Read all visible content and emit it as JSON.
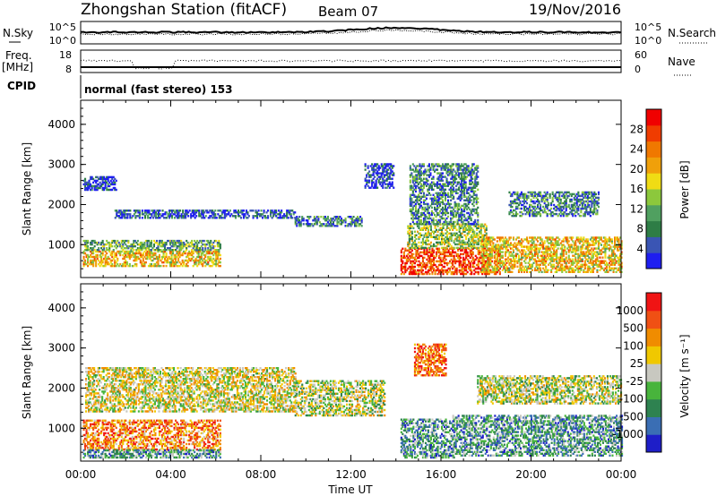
{
  "header": {
    "title": "Zhongshan Station (fitACF)",
    "beam": "Beam 07",
    "date": "19/Nov/2016"
  },
  "summary": {
    "nsky_label": "N.Sky",
    "nsky_ticks": [
      "10^5",
      "10^0"
    ],
    "nsearch_label": "N.Search",
    "nsearch_ticks": [
      "10^5",
      "10^0"
    ],
    "freq_label": "Freq.",
    "freq_unit": "[MHz]",
    "freq_ticks": [
      "18",
      "8"
    ],
    "nave_label": "Nave",
    "nave_ticks": [
      "60",
      "0"
    ],
    "cpid_label": "CPID",
    "cpid_text": "normal (fast stereo) 153"
  },
  "chart_data": [
    {
      "type": "heatmap",
      "name": "power",
      "ylabel": "Slant Range [km]",
      "xlabel": "",
      "x_ticks": [
        "00:00",
        "04:00",
        "08:00",
        "12:00",
        "16:00",
        "20:00",
        "00:00"
      ],
      "x_range_hours": [
        0,
        24
      ],
      "y_ticks": [
        1000,
        2000,
        3000,
        4000
      ],
      "ylim": [
        180,
        4600
      ],
      "colorbar": {
        "label": "Power [dB]",
        "ticks": [
          "4",
          "8",
          "12",
          "16",
          "20",
          "24",
          "28"
        ],
        "colors": [
          "#1e1ef0",
          "#3a55b4",
          "#2e7d46",
          "#50a060",
          "#8cc83c",
          "#f0dc14",
          "#f0a00a",
          "#f07800",
          "#f03c00",
          "#f00000"
        ]
      },
      "bands": [
        {
          "t0": 0.1,
          "t1": 6.2,
          "r0": 450,
          "r1": 850,
          "level": 0.6
        },
        {
          "t0": 0.1,
          "t1": 6.2,
          "r0": 850,
          "r1": 1100,
          "level": 0.35
        },
        {
          "t0": 1.5,
          "t1": 9.5,
          "r0": 1650,
          "r1": 1850,
          "level": 0.15
        },
        {
          "t0": 0.1,
          "t1": 1.6,
          "r0": 2350,
          "r1": 2700,
          "level": 0.1
        },
        {
          "t0": 9.5,
          "t1": 12.5,
          "r0": 1450,
          "r1": 1700,
          "level": 0.25
        },
        {
          "t0": 12.6,
          "t1": 13.9,
          "r0": 2400,
          "r1": 3000,
          "level": 0.1
        },
        {
          "t0": 14.2,
          "t1": 18.6,
          "r0": 250,
          "r1": 900,
          "level": 0.85
        },
        {
          "t0": 14.5,
          "t1": 18.0,
          "r0": 900,
          "r1": 1500,
          "level": 0.45
        },
        {
          "t0": 14.6,
          "t1": 17.6,
          "r0": 1500,
          "r1": 3000,
          "level": 0.25
        },
        {
          "t0": 17.8,
          "t1": 24.0,
          "r0": 300,
          "r1": 1200,
          "level": 0.6
        },
        {
          "t0": 19.0,
          "t1": 23.0,
          "r0": 1700,
          "r1": 2300,
          "level": 0.25
        }
      ]
    },
    {
      "type": "heatmap",
      "name": "velocity",
      "ylabel": "Slant Range [km]",
      "xlabel": "Time UT",
      "x_ticks": [
        "00:00",
        "04:00",
        "08:00",
        "12:00",
        "16:00",
        "20:00",
        "00:00"
      ],
      "x_range_hours": [
        0,
        24
      ],
      "y_ticks": [
        1000,
        2000,
        3000,
        4000
      ],
      "ylim": [
        180,
        4600
      ],
      "colorbar": {
        "label": "Velocity [m s⁻¹]",
        "ticks": [
          "1000",
          "500",
          "100",
          "25",
          "-25",
          "-100",
          "-500",
          "-1000"
        ],
        "colors": [
          "#1e1ec8",
          "#3a6eb4",
          "#2e8250",
          "#48b43c",
          "#c8c8c0",
          "#f0c800",
          "#f08c00",
          "#f05014",
          "#f01414"
        ]
      },
      "bands": [
        {
          "t0": 0.1,
          "t1": 6.2,
          "r0": 450,
          "r1": 1200,
          "level": 0.75
        },
        {
          "t0": 0.1,
          "t1": 6.2,
          "r0": 250,
          "r1": 450,
          "level": 0.3
        },
        {
          "t0": 0.2,
          "t1": 9.5,
          "r0": 1400,
          "r1": 2500,
          "level": 0.55
        },
        {
          "t0": 9.5,
          "t1": 13.5,
          "r0": 1300,
          "r1": 2200,
          "level": 0.5
        },
        {
          "t0": 14.2,
          "t1": 16.6,
          "r0": 250,
          "r1": 1200,
          "level": 0.3
        },
        {
          "t0": 14.8,
          "t1": 16.2,
          "r0": 2300,
          "r1": 3100,
          "level": 0.8
        },
        {
          "t0": 16.5,
          "t1": 24.0,
          "r0": 300,
          "r1": 1300,
          "level": 0.3
        },
        {
          "t0": 17.6,
          "t1": 24.0,
          "r0": 1600,
          "r1": 2300,
          "level": 0.5
        }
      ]
    }
  ]
}
